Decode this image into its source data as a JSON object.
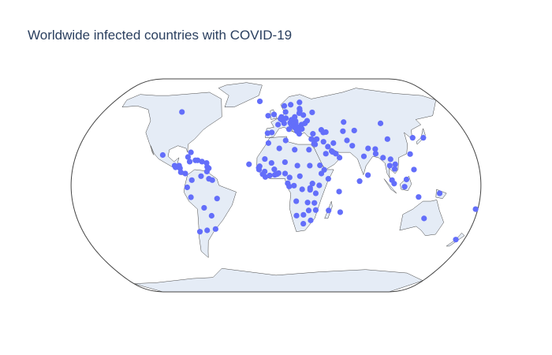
{
  "chart_data": {
    "type": "scattergeo",
    "title": "Worldwide infected countries with COVID-19",
    "projection": "natural earth",
    "color": "#636efa",
    "lon": [
      -98,
      -102,
      -79,
      -77,
      -77,
      -72,
      -70,
      -66,
      -90,
      -86,
      -89,
      -85,
      -84,
      -80,
      -61,
      -59.5,
      -61,
      -61.8,
      -74,
      -66,
      -59,
      -56,
      -78,
      -75,
      -64,
      -52,
      -58,
      -56,
      -64,
      -71,
      -18,
      -2,
      -8,
      2,
      -4,
      -8,
      4.5,
      5.5,
      6,
      10,
      8,
      14,
      12.5,
      10,
      9,
      16,
      26,
      25,
      25,
      24,
      19,
      15.5,
      19.5,
      19.5,
      15,
      16,
      17.8,
      21,
      19.3,
      20,
      21.7,
      22,
      25,
      25,
      28.5,
      31,
      28,
      37.6,
      35,
      33,
      43.5,
      45,
      47.5,
      35,
      35.8,
      36,
      38,
      44,
      53,
      47.5,
      45,
      50.5,
      51.2,
      54,
      57,
      66,
      70,
      79,
      84,
      81,
      90,
      90.4,
      73.5,
      64,
      75,
      67,
      103,
      104,
      128,
      138,
      121,
      106,
      101,
      105,
      102.5,
      96,
      102,
      103.8,
      113,
      122,
      114.7,
      125.7,
      144,
      134,
      172,
      178,
      -7,
      3,
      9,
      17,
      30,
      30,
      -10,
      -14.5,
      -15.3,
      -15,
      -10,
      -11.8,
      -9.4,
      -5.5,
      -4,
      -1.5,
      -1,
      1,
      2.3,
      8,
      8,
      19,
      12,
      21,
      10.3,
      11.6,
      15.8,
      23,
      32,
      38,
      40,
      39,
      42.6,
      46,
      30,
      30,
      35,
      17.9,
      28,
      34,
      35.5,
      29.2,
      24.7,
      18.5,
      25,
      31.5,
      47,
      57.5,
      55.5,
      -24
    ],
    "lat": [
      56,
      23,
      21.5,
      25,
      18,
      19,
      19,
      18,
      15,
      15,
      13.7,
      13,
      10,
      9,
      10.5,
      13,
      14,
      17,
      4,
      7,
      5,
      4,
      -1.5,
      -9,
      -17,
      -10,
      -23,
      -33,
      -34,
      -35,
      64.9,
      54,
      53,
      46,
      40,
      39.5,
      50.6,
      52,
      49.7,
      51,
      47,
      47.5,
      42.5,
      56,
      61,
      62,
      64,
      58.7,
      57,
      55,
      52,
      49.8,
      48.7,
      47,
      46,
      45.2,
      44,
      44,
      42.7,
      41,
      41.6,
      39,
      42.7,
      46,
      47,
      49,
      53.5,
      55.7,
      39,
      35,
      42,
      40,
      40.3,
      31.5,
      33.9,
      31,
      35,
      33,
      32,
      29.3,
      24,
      26,
      25.3,
      24,
      21,
      34,
      30,
      22,
      28,
      7.8,
      24,
      27.5,
      3.2,
      41,
      41.5,
      48,
      47,
      35,
      36,
      36,
      23.7,
      16,
      15,
      12.5,
      19.8,
      21,
      4,
      1.35,
      -1,
      12,
      4.5,
      -8.8,
      -6,
      -25,
      -41,
      -18,
      32,
      28,
      34,
      27,
      27,
      15,
      20,
      14.5,
      13.4,
      12,
      10.5,
      8.5,
      6.4,
      7.5,
      17,
      12.2,
      8,
      8.6,
      9.3,
      17.6,
      9,
      15,
      6,
      7,
      1.6,
      -0.8,
      -0.2,
      -3,
      1.4,
      0,
      9,
      15.2,
      11.8,
      5,
      -2,
      -3.4,
      -6,
      -12,
      -13,
      -13.3,
      -18.7,
      -19,
      -22.3,
      -22.9,
      -29,
      -26.5,
      -19,
      -20.3,
      -4.7,
      16
    ]
  }
}
